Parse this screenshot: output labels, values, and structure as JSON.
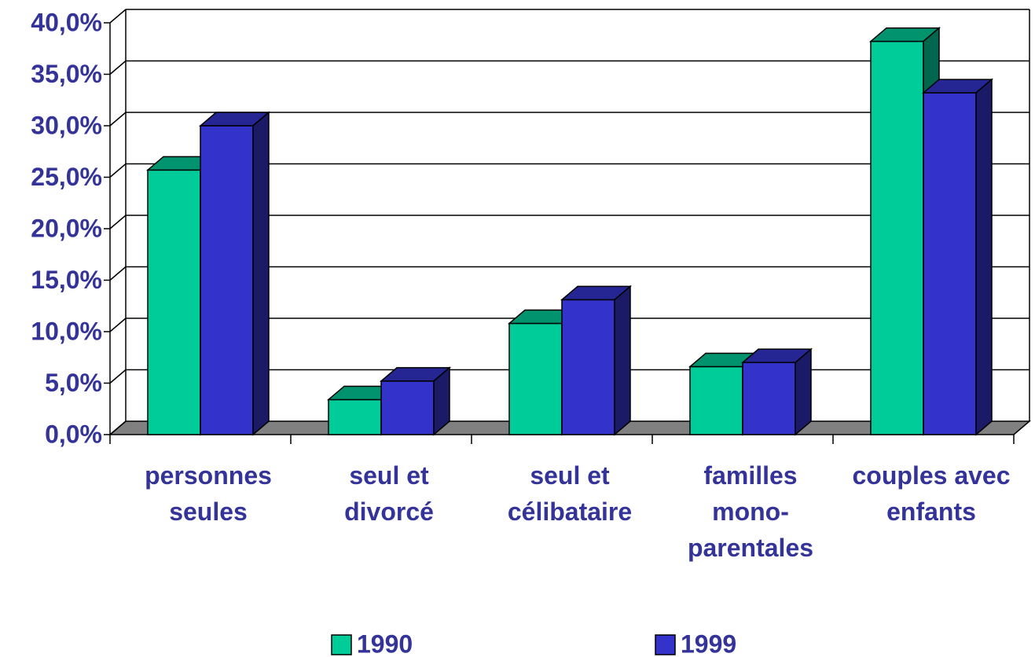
{
  "chart_data": {
    "type": "bar3d",
    "categories": [
      "personnes\nseules",
      "seul et\ndivorcé",
      "seul et\ncélibataire",
      "familles\nmono-\nparentales",
      "couples avec\nenfants"
    ],
    "series": [
      {
        "name": "1990",
        "color": "#00cc99",
        "values": [
          25.7,
          3.4,
          10.8,
          6.6,
          38.2
        ]
      },
      {
        "name": "1999",
        "color": "#3333cc",
        "values": [
          30.0,
          5.2,
          13.1,
          7.0,
          33.2
        ]
      }
    ],
    "ylim": [
      0,
      40
    ],
    "yticks": [
      {
        "value": 0,
        "label": "0,0%"
      },
      {
        "value": 5,
        "label": "5,0%"
      },
      {
        "value": 10,
        "label": "10,0%"
      },
      {
        "value": 15,
        "label": "15,0%"
      },
      {
        "value": 20,
        "label": "20,0%"
      },
      {
        "value": 25,
        "label": "25,0%"
      },
      {
        "value": 30,
        "label": "30,0%"
      },
      {
        "value": 35,
        "label": "35,0%"
      },
      {
        "value": 40,
        "label": "40,0%"
      }
    ],
    "grid": true,
    "legend": "bottom"
  }
}
